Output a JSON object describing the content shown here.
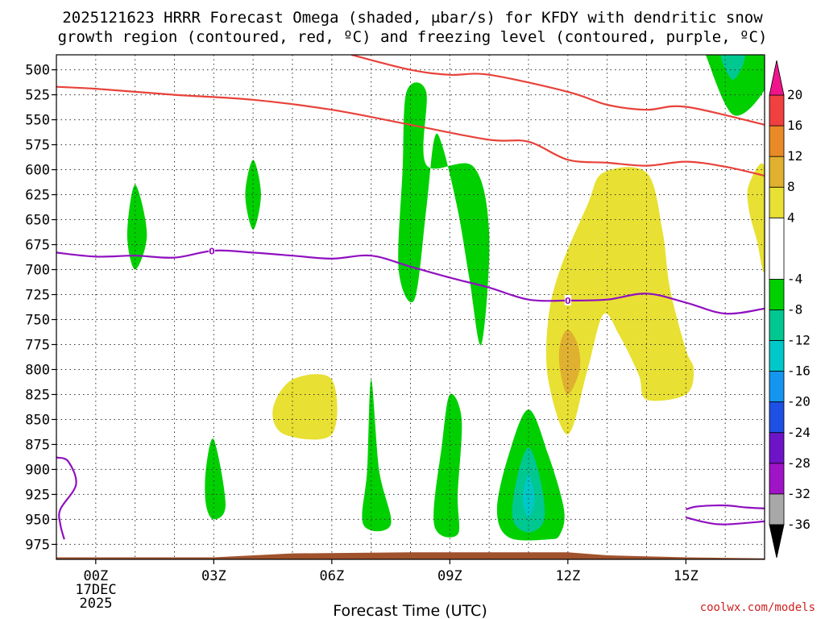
{
  "chart_data": {
    "type": "heatmap",
    "title_line1": "2025121623 HRRR Forecast Omega (shaded, μbar/s) for KFDY with dendritic snow",
    "title_line2": "growth region (contoured, red, ºC) and freezing level (contoured, purple, ºC)",
    "xlabel": "Forecast Time (UTC)",
    "credit": "coolwx.com/models",
    "x_ticks": [
      {
        "hour": 0,
        "label": "00Z"
      },
      {
        "hour": 3,
        "label": "03Z"
      },
      {
        "hour": 6,
        "label": "06Z"
      },
      {
        "hour": 9,
        "label": "09Z"
      },
      {
        "hour": 12,
        "label": "12Z"
      },
      {
        "hour": 15,
        "label": "15Z"
      }
    ],
    "date_label": [
      "17DEC",
      "2025"
    ],
    "xlim": [
      -1,
      17
    ],
    "y_ticks": [
      500,
      525,
      550,
      575,
      600,
      625,
      650,
      675,
      700,
      725,
      750,
      775,
      800,
      825,
      850,
      875,
      900,
      925,
      950,
      975
    ],
    "ylim": [
      990,
      485
    ],
    "grid": true,
    "colorbar": {
      "labels": [
        "20",
        "16",
        "12",
        "8",
        "4",
        "-4",
        "-8",
        "-12",
        "-16",
        "-20",
        "-24",
        "-28",
        "-32",
        "-36"
      ],
      "bins": [
        {
          "color": "#ffffff",
          "from": 4,
          "to": -4
        },
        {
          "color": "#e8e032",
          "from": 8,
          "to": 4
        },
        {
          "color": "#e0b030",
          "from": 12,
          "to": 8
        },
        {
          "color": "#e88a28",
          "from": 16,
          "to": 12
        },
        {
          "color": "#f04040",
          "from": 20,
          "to": 16
        },
        {
          "color": "#00d000",
          "from": -4,
          "to": -8
        },
        {
          "color": "#00c890",
          "from": -8,
          "to": -12
        },
        {
          "color": "#00c8c8",
          "from": -12,
          "to": -16
        },
        {
          "color": "#1496f0",
          "from": -16,
          "to": -20
        },
        {
          "color": "#1e50e6",
          "from": -20,
          "to": -24
        },
        {
          "color": "#6e14c8",
          "from": -24,
          "to": -28
        },
        {
          "color": "#a014c8",
          "from": -28,
          "to": -32
        },
        {
          "color": "#a8a8a8",
          "from": -32,
          "to": -36
        }
      ],
      "top_arrow_color": "#f0148c",
      "bottom_arrow_color": "#000000"
    },
    "shaded_regions": [
      {
        "name": "green-plume-hour8",
        "value": -6,
        "points": [
          [
            7.9,
            522
          ],
          [
            8.4,
            522
          ],
          [
            8.4,
            595
          ],
          [
            9.6,
            597
          ],
          [
            10,
            665
          ],
          [
            9.8,
            775
          ],
          [
            9.5,
            710
          ],
          [
            9.2,
            640
          ],
          [
            8.8,
            575
          ],
          [
            8.6,
            570
          ],
          [
            8.4,
            640
          ],
          [
            8.1,
            730
          ],
          [
            7.7,
            700
          ],
          [
            7.8,
            600
          ]
        ]
      },
      {
        "name": "green-blob-hour1",
        "value": -6,
        "points": [
          [
            1,
            615
          ],
          [
            1.3,
            665
          ],
          [
            1,
            700
          ],
          [
            0.8,
            665
          ]
        ]
      },
      {
        "name": "green-blob-hour4",
        "value": -6,
        "points": [
          [
            4,
            590
          ],
          [
            4.2,
            625
          ],
          [
            4,
            660
          ],
          [
            3.8,
            625
          ]
        ]
      },
      {
        "name": "green-blob-hour3",
        "value": -6,
        "points": [
          [
            3,
            870
          ],
          [
            3.3,
            935
          ],
          [
            3,
            950
          ],
          [
            2.8,
            935
          ],
          [
            2.8,
            900
          ]
        ]
      },
      {
        "name": "green-streak-hour7",
        "value": -6,
        "points": [
          [
            7,
            810
          ],
          [
            7.2,
            900
          ],
          [
            7.5,
            955
          ],
          [
            6.8,
            955
          ],
          [
            6.9,
            900
          ]
        ]
      },
      {
        "name": "green-blob-hour9",
        "value": -6,
        "points": [
          [
            9,
            825
          ],
          [
            9.3,
            850
          ],
          [
            9.2,
            925
          ],
          [
            9.2,
            965
          ],
          [
            8.6,
            955
          ],
          [
            8.8,
            875
          ]
        ]
      },
      {
        "name": "green-blob-hour11",
        "value": -6,
        "points": [
          [
            11,
            840
          ],
          [
            11.5,
            885
          ],
          [
            11.9,
            940
          ],
          [
            11.8,
            965
          ],
          [
            11.5,
            970
          ],
          [
            10.5,
            968
          ],
          [
            10.2,
            940
          ],
          [
            10.5,
            885
          ]
        ]
      },
      {
        "name": "teal-core-hour11",
        "value": -10,
        "points": [
          [
            11,
            878
          ],
          [
            11.3,
            910
          ],
          [
            11.4,
            950
          ],
          [
            11,
            963
          ],
          [
            10.6,
            950
          ],
          [
            10.7,
            910
          ]
        ]
      },
      {
        "name": "cyan-core-hour11",
        "value": -14,
        "points": [
          [
            11,
            905
          ],
          [
            11.15,
            930
          ],
          [
            11,
            948
          ],
          [
            10.85,
            930
          ]
        ]
      },
      {
        "name": "green-top-right",
        "value": -6,
        "points": [
          [
            15.5,
            485
          ],
          [
            16.8,
            485
          ],
          [
            17,
            490
          ],
          [
            17,
            520
          ],
          [
            16.2,
            545
          ],
          [
            15.5,
            485
          ]
        ]
      },
      {
        "name": "teal-top-right",
        "value": -10,
        "points": [
          [
            15.9,
            485
          ],
          [
            16.5,
            485
          ],
          [
            16.2,
            510
          ]
        ]
      },
      {
        "name": "yellow-right",
        "value": 6,
        "points": [
          [
            12.9,
            603
          ],
          [
            14,
            603
          ],
          [
            14.4,
            660
          ],
          [
            14.6,
            720
          ],
          [
            15,
            780
          ],
          [
            15.2,
            800
          ],
          [
            15,
            825
          ],
          [
            14,
            830
          ],
          [
            13.8,
            805
          ],
          [
            13.3,
            765
          ],
          [
            12.9,
            745
          ],
          [
            12.5,
            800
          ],
          [
            12,
            865
          ],
          [
            11.5,
            810
          ],
          [
            11.5,
            750
          ],
          [
            11.8,
            700
          ],
          [
            12.5,
            635
          ]
        ]
      },
      {
        "name": "orange-core-hour12",
        "value": 10,
        "points": [
          [
            12,
            760
          ],
          [
            12.25,
            775
          ],
          [
            12.3,
            800
          ],
          [
            12,
            825
          ],
          [
            11.8,
            800
          ],
          [
            11.8,
            775
          ]
        ]
      },
      {
        "name": "yellow-blob-hour5",
        "value": 6,
        "points": [
          [
            5,
            810
          ],
          [
            6,
            810
          ],
          [
            6,
            865
          ],
          [
            4.8,
            865
          ],
          [
            4.5,
            840
          ]
        ]
      },
      {
        "name": "yellow-edge-right",
        "value": 6,
        "points": [
          [
            17,
            598
          ],
          [
            17,
            700
          ],
          [
            16.8,
            670
          ],
          [
            16.6,
            640
          ],
          [
            16.6,
            615
          ]
        ]
      }
    ],
    "red_contours": [
      {
        "name": "red-contour-upper",
        "points": [
          [
            6.5,
            485
          ],
          [
            8,
            500
          ],
          [
            9,
            505
          ],
          [
            10,
            505
          ],
          [
            12,
            522
          ],
          [
            13,
            535
          ],
          [
            14,
            540
          ],
          [
            15,
            537
          ],
          [
            17,
            555
          ]
        ]
      },
      {
        "name": "red-contour-middle",
        "points": [
          [
            -1,
            517
          ],
          [
            0,
            519
          ],
          [
            2,
            525
          ],
          [
            4,
            530
          ],
          [
            6,
            540
          ],
          [
            8,
            555
          ],
          [
            10,
            570
          ],
          [
            11,
            572
          ],
          [
            12,
            590
          ],
          [
            13,
            593
          ],
          [
            14,
            596
          ],
          [
            15,
            592
          ],
          [
            16,
            597
          ],
          [
            17,
            606
          ]
        ]
      }
    ],
    "purple_contours": [
      {
        "name": "freezing-level-main",
        "label": "0",
        "label_at_hour": 2.95,
        "points": [
          [
            -1,
            683
          ],
          [
            0,
            687
          ],
          [
            1,
            686
          ],
          [
            2,
            688
          ],
          [
            3,
            681
          ],
          [
            4,
            683
          ],
          [
            5,
            686
          ],
          [
            6,
            689
          ],
          [
            7,
            686
          ],
          [
            8,
            697
          ],
          [
            9,
            708
          ],
          [
            10,
            718
          ],
          [
            11,
            730
          ],
          [
            12,
            731
          ],
          [
            13,
            730
          ],
          [
            14,
            724
          ],
          [
            15,
            733
          ],
          [
            16,
            744
          ],
          [
            17,
            739
          ]
        ]
      },
      {
        "name": "freezing-level-label-12z",
        "label": "0",
        "label_at_hour": 12,
        "points": []
      },
      {
        "name": "freezing-level-lower-left",
        "points": [
          [
            -1,
            888
          ],
          [
            -0.7,
            892
          ],
          [
            -0.5,
            915
          ],
          [
            -0.9,
            940
          ],
          [
            -0.9,
            955
          ],
          [
            -0.8,
            970
          ]
        ]
      },
      {
        "name": "freezing-level-lower-right",
        "points": [
          [
            15,
            940
          ],
          [
            15.3,
            937
          ],
          [
            16,
            936
          ],
          [
            16.5,
            938
          ],
          [
            17,
            939
          ]
        ]
      },
      {
        "name": "freezing-level-lower-right-b",
        "points": [
          [
            15,
            948
          ],
          [
            15.5,
            953
          ],
          [
            16,
            955
          ],
          [
            17,
            952
          ]
        ]
      }
    ],
    "terrain": {
      "color": "#a0522d",
      "points": [
        [
          -1,
          988
        ],
        [
          3,
          988
        ],
        [
          5,
          984
        ],
        [
          8,
          983
        ],
        [
          12,
          983
        ],
        [
          13,
          986
        ],
        [
          15,
          988
        ],
        [
          17,
          989
        ]
      ]
    }
  }
}
